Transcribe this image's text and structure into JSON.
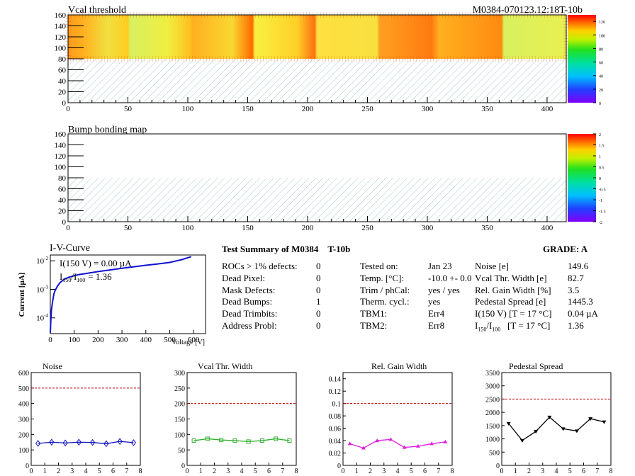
{
  "module_id": "M0384-070123.12:18T-10b",
  "vcal_map": {
    "title": "Vcal threshold",
    "x_ticks": [
      "0",
      "50",
      "100",
      "150",
      "200",
      "250",
      "300",
      "350",
      "400"
    ],
    "y_ticks": [
      "0",
      "20",
      "40",
      "60",
      "80",
      "100",
      "120",
      "140",
      "160"
    ],
    "palette_ticks": [
      "0",
      "20",
      "40",
      "60",
      "80",
      "100",
      "120"
    ]
  },
  "bump_map": {
    "title": "Bump bonding map",
    "x_ticks": [
      "0",
      "50",
      "100",
      "150",
      "200",
      "250",
      "300",
      "350",
      "400"
    ],
    "y_ticks": [
      "0",
      "20",
      "40",
      "60",
      "80",
      "100",
      "120",
      "140",
      "160"
    ],
    "palette_ticks": [
      "-2",
      "-1.5",
      "-1",
      "-0.5",
      "0",
      "0.5",
      "1",
      "1.5",
      "2"
    ]
  },
  "iv_curve": {
    "title": "I-V-Curve",
    "ylabel": "Current [µA]",
    "xlabel": "Voltage [V]",
    "x_ticks": [
      "0",
      "100",
      "200",
      "300",
      "400",
      "500",
      "600"
    ],
    "annotation_current": "I(150 V) = 0.00 µA",
    "annotation_ratio_value": "= 1.36"
  },
  "summary": {
    "title": "Test Summary of M0384",
    "tag": "T-10b",
    "grade": "GRADE:  A",
    "defects": [
      {
        "label": "ROCs > 1% defects:",
        "value": "0"
      },
      {
        "label": "Dead Pixel:",
        "value": "0"
      },
      {
        "label": "Mask Defects:",
        "value": "0"
      },
      {
        "label": "Dead Bumps:",
        "value": "1"
      },
      {
        "label": "Dead Trimbits:",
        "value": "0"
      },
      {
        "label": "Address Probl:",
        "value": "0"
      }
    ],
    "conditions": [
      {
        "label": "Tested on:",
        "value": "Jan 23"
      },
      {
        "label": "Temp. [°C]:",
        "value": "-10.0 +- 0.0"
      },
      {
        "label": "Trim / phCal:",
        "value": "yes / yes"
      },
      {
        "label": "Therm. cycl.:",
        "value": "yes"
      },
      {
        "label": "TBM1:",
        "value": "Err4"
      },
      {
        "label": "TBM2:",
        "value": "Err8"
      }
    ],
    "results": [
      {
        "label": "Noise [e]",
        "value": "149.6"
      },
      {
        "label": "Vcal Thr. Width [e]",
        "value": "82.7"
      },
      {
        "label": "Rel. Gain Width [%]",
        "value": "3.5"
      },
      {
        "label": "Pedestal Spread [e]",
        "value": "1445.3"
      },
      {
        "label": "I(150 V) [T = 17 °C]",
        "value": "0.04 µA"
      },
      {
        "label": "[T = 17 °C]",
        "value": "1.36"
      }
    ]
  },
  "chart_data": [
    {
      "type": "line",
      "title": "Noise",
      "x": [
        0.5,
        1.5,
        2.5,
        3.5,
        4.5,
        5.5,
        6.5,
        7.5
      ],
      "values": [
        142,
        150,
        145,
        150,
        148,
        140,
        155,
        147
      ],
      "ylim": [
        0,
        600
      ],
      "xlim": [
        0,
        8
      ],
      "y_ticks": [
        "0",
        "100",
        "200",
        "300",
        "400",
        "500",
        "600"
      ],
      "x_ticks": [
        "0",
        "1",
        "2",
        "3",
        "4",
        "5",
        "6",
        "7",
        "8"
      ],
      "threshold": 500,
      "color": "#1010c0",
      "marker": "diamond"
    },
    {
      "type": "line",
      "title": "Vcal Thr. Width",
      "x": [
        0.5,
        1.5,
        2.5,
        3.5,
        4.5,
        5.5,
        6.5,
        7.5
      ],
      "values": [
        80,
        86,
        82,
        80,
        77,
        80,
        86,
        80
      ],
      "ylim": [
        0,
        300
      ],
      "xlim": [
        0,
        8
      ],
      "y_ticks": [
        "0",
        "50",
        "100",
        "150",
        "200",
        "250",
        "300"
      ],
      "x_ticks": [
        "0",
        "1",
        "2",
        "3",
        "4",
        "5",
        "6",
        "7",
        "8"
      ],
      "threshold": 200,
      "color": "#30b030",
      "marker": "square"
    },
    {
      "type": "line",
      "title": "Rel. Gain Width",
      "x": [
        0.5,
        1.5,
        2.5,
        3.5,
        4.5,
        5.5,
        6.5,
        7.5
      ],
      "values": [
        0.035,
        0.028,
        0.04,
        0.042,
        0.029,
        0.031,
        0.035,
        0.038
      ],
      "ylim": [
        0,
        0.15
      ],
      "xlim": [
        0,
        8
      ],
      "y_ticks": [
        "0",
        "0.02",
        "0.04",
        "0.06",
        "0.08",
        "0.1",
        "0.12",
        "0.14"
      ],
      "x_ticks": [
        "0",
        "1",
        "2",
        "3",
        "4",
        "5",
        "6",
        "7",
        "8"
      ],
      "threshold": 0.1,
      "color": "#e020e0",
      "marker": "triangle"
    },
    {
      "type": "line",
      "title": "Pedestal Spread",
      "x": [
        0.5,
        1.5,
        2.5,
        3.5,
        4.5,
        5.5,
        6.5,
        7.5
      ],
      "values": [
        1580,
        940,
        1280,
        1820,
        1380,
        1300,
        1760,
        1640
      ],
      "ylim": [
        0,
        3500
      ],
      "xlim": [
        0,
        8
      ],
      "y_ticks": [
        "0",
        "500",
        "1000",
        "1500",
        "2000",
        "2500",
        "3000",
        "3500"
      ],
      "x_ticks": [
        "0",
        "1",
        "2",
        "3",
        "4",
        "5",
        "6",
        "7",
        "8"
      ],
      "threshold": 2500,
      "color": "#000000",
      "marker": "triangle-down"
    }
  ],
  "iv_data": {
    "voltages": [
      0,
      2,
      5,
      10,
      15,
      20,
      30,
      40,
      50,
      60,
      80,
      100,
      120,
      150,
      200,
      250,
      300,
      350,
      400,
      450,
      500,
      550,
      590
    ],
    "currents": [
      3e-05,
      8e-05,
      0.0002,
      0.0004,
      0.0007,
      0.0009,
      0.0013,
      0.0017,
      0.002,
      0.0023,
      0.0027,
      0.003,
      0.0033,
      0.0036,
      0.0042,
      0.0048,
      0.0055,
      0.0062,
      0.007,
      0.0078,
      0.0088,
      0.011,
      0.014
    ]
  },
  "colors": {
    "threshold_line": "#c00000",
    "hatch": "#a8c8c8"
  }
}
